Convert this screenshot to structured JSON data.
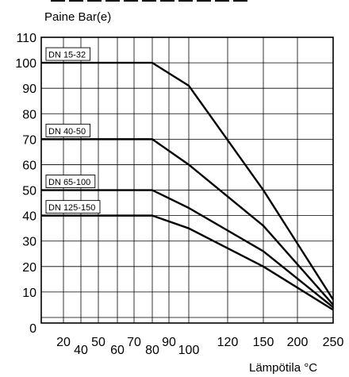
{
  "top_fragment": "— — — — — — — — — — —",
  "chart_data": {
    "type": "line",
    "ylabel": "Paine Bar(e)",
    "xlabel": "Lämpötila °C",
    "x_tick_labels": [
      "20",
      "40",
      "50",
      "60",
      "70",
      "80",
      "90",
      "100",
      "120",
      "150",
      "200",
      "250"
    ],
    "y_tick_labels": [
      "0",
      "10",
      "20",
      "30",
      "40",
      "50",
      "60",
      "70",
      "80",
      "90",
      "100",
      "110"
    ],
    "ylim": [
      0,
      110
    ],
    "grid": true,
    "series": [
      {
        "name": "DN 15-32",
        "x": [
          "20",
          "80",
          "100",
          "150",
          "250"
        ],
        "y": [
          100,
          100,
          91,
          50,
          7
        ]
      },
      {
        "name": "DN 40-50",
        "x": [
          "20",
          "80",
          "100",
          "150",
          "250"
        ],
        "y": [
          70,
          70,
          60,
          36,
          5
        ]
      },
      {
        "name": "DN 65-100",
        "x": [
          "20",
          "80",
          "100",
          "150",
          "250"
        ],
        "y": [
          50,
          50,
          43,
          26,
          4
        ]
      },
      {
        "name": "DN 125-150",
        "x": [
          "20",
          "80",
          "100",
          "150",
          "250"
        ],
        "y": [
          40,
          40,
          35,
          20,
          3
        ]
      }
    ]
  }
}
